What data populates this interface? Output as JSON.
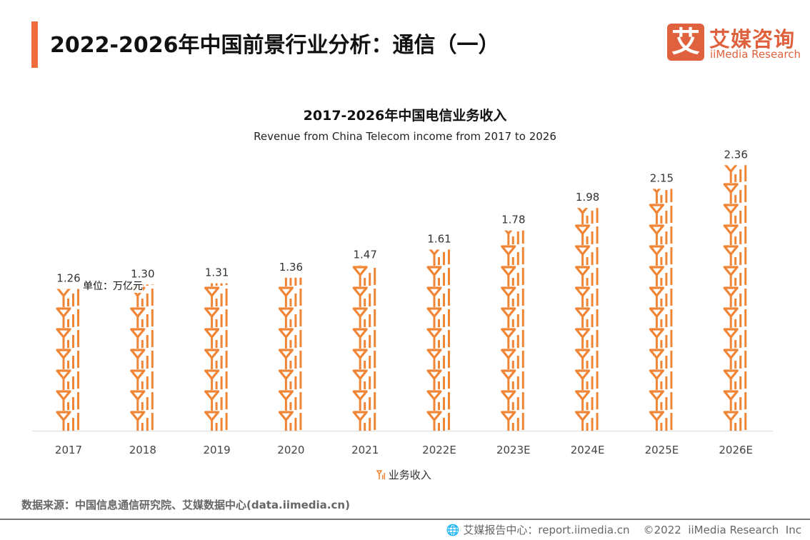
{
  "header": {
    "title": "2022-2026年中国前景行业分析：通信（一）"
  },
  "logo": {
    "mark": "艾",
    "cn": "艾媒咨询",
    "en": "iiMedia Research"
  },
  "chart_data": {
    "type": "bar",
    "title": "2017-2026年中国电信业务收入",
    "subtitle": "Revenue from China Telecom income from 2017 to 2026",
    "unit_label": "单位：万亿元",
    "categories": [
      "2017",
      "2018",
      "2019",
      "2020",
      "2021",
      "2022E",
      "2023E",
      "2024E",
      "2025E",
      "2026E"
    ],
    "series": [
      {
        "name": "业务收入",
        "values": [
          1.26,
          1.3,
          1.31,
          1.36,
          1.47,
          1.61,
          1.78,
          1.98,
          2.15,
          2.36
        ]
      }
    ],
    "bar_style": "pictorial-antenna-icons",
    "color": "#f08536",
    "grid": false,
    "legend": "bottom-center"
  },
  "source": "数据来源：中国信息通信研究院、艾媒数据中心(data.iimedia.cn)",
  "footer": {
    "icon": "globe-icon",
    "text": "艾媒报告中心：report.iimedia.cn    ©2022  iiMedia Research  Inc"
  }
}
